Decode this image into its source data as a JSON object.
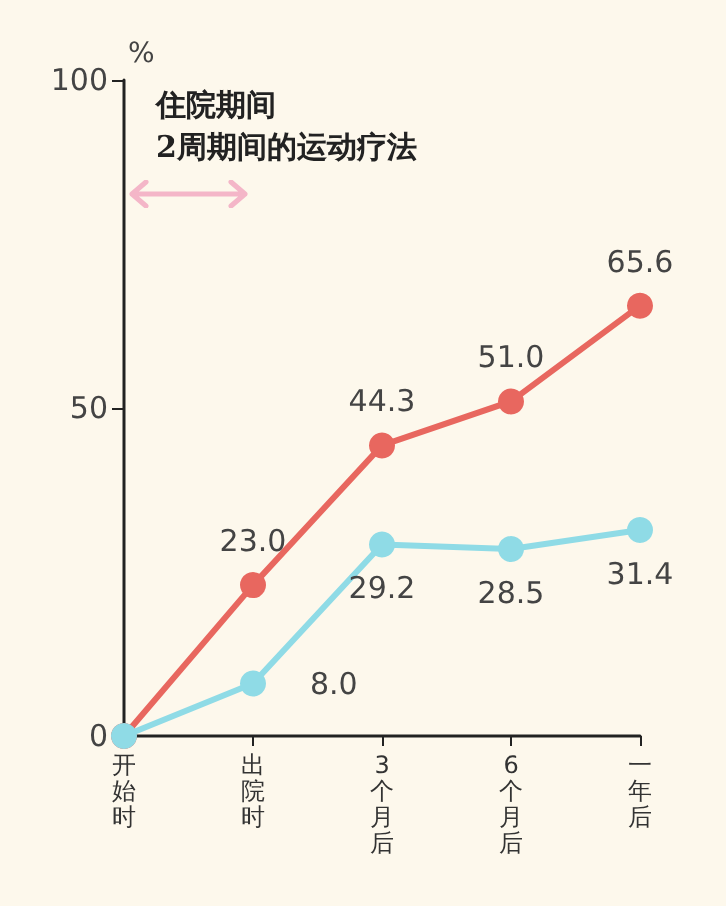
{
  "chart_data": {
    "type": "line",
    "ylabel": "%",
    "annotations": [
      "住院期间\n2周期间的运动疗法"
    ],
    "categories": [
      "开始时",
      "出院时",
      "3个月后",
      "6个月后",
      "一年后"
    ],
    "series": [
      {
        "color": "#e8675f",
        "values": [
          0,
          23.0,
          44.3,
          51.0,
          65.6
        ],
        "value_labels": [
          null,
          "23.0",
          "44.3",
          "51.0",
          "65.6"
        ]
      },
      {
        "color": "#8fdbe6",
        "values": [
          0,
          8.0,
          29.2,
          28.5,
          31.4
        ],
        "value_labels": [
          null,
          "8.0",
          "29.2",
          "28.5",
          "31.4"
        ]
      }
    ],
    "ylim": [
      0,
      100
    ],
    "yticks": [
      0,
      50,
      100
    ],
    "grid": false,
    "marker": "circle",
    "line_style": "solid"
  }
}
